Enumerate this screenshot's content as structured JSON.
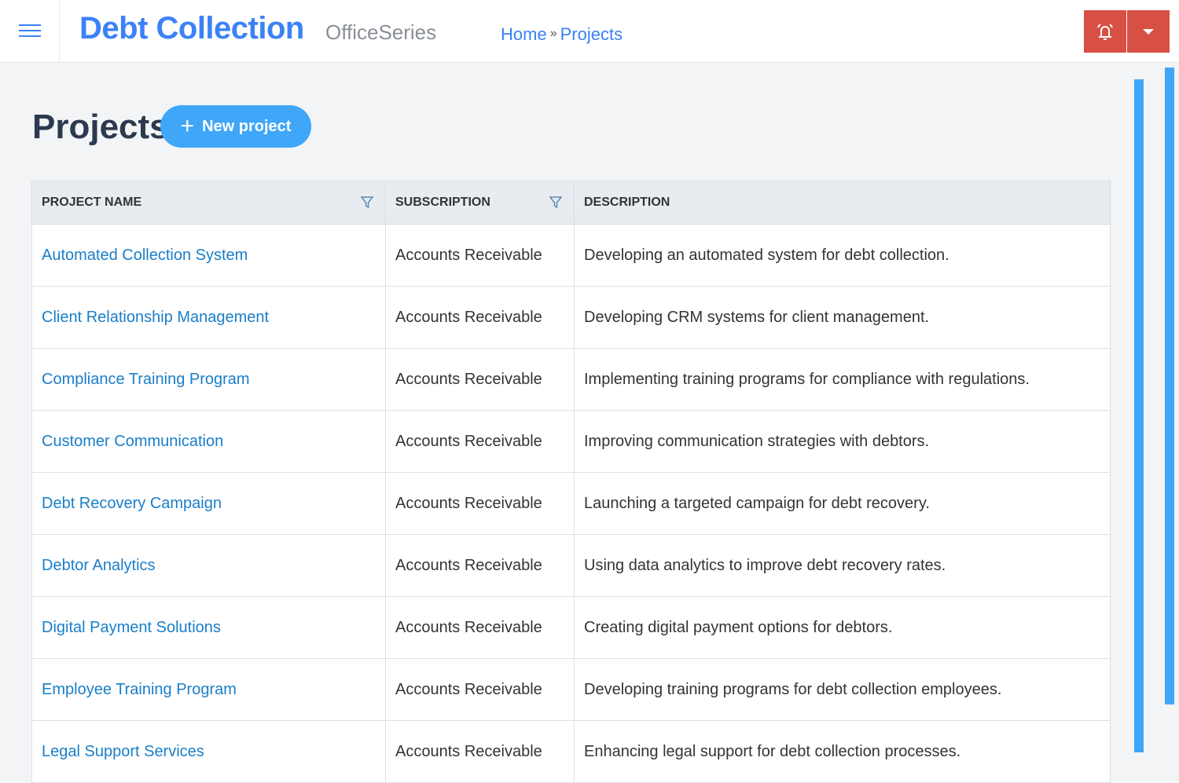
{
  "header": {
    "brand": "Debt Collection",
    "suite": "OfficeSeries",
    "breadcrumb": [
      {
        "label": "Home"
      },
      {
        "label": "Projects"
      }
    ],
    "breadcrumb_sep": "»",
    "accent": "#3b82f6",
    "alert_color": "#d84f43"
  },
  "page": {
    "title": "Projects",
    "new_button": "New project"
  },
  "table": {
    "columns": [
      "PROJECT NAME",
      "SUBSCRIPTION",
      "DESCRIPTION"
    ],
    "rows": [
      {
        "name": "Automated Collection System",
        "subscription": "Accounts Receivable",
        "description": "Developing an automated system for debt collection."
      },
      {
        "name": "Client Relationship Management",
        "subscription": "Accounts Receivable",
        "description": "Developing CRM systems for client management."
      },
      {
        "name": "Compliance Training Program",
        "subscription": "Accounts Receivable",
        "description": "Implementing training programs for compliance with regulations."
      },
      {
        "name": "Customer Communication",
        "subscription": "Accounts Receivable",
        "description": "Improving communication strategies with debtors."
      },
      {
        "name": "Debt Recovery Campaign",
        "subscription": "Accounts Receivable",
        "description": "Launching a targeted campaign for debt recovery."
      },
      {
        "name": "Debtor Analytics",
        "subscription": "Accounts Receivable",
        "description": "Using data analytics to improve debt recovery rates."
      },
      {
        "name": "Digital Payment Solutions",
        "subscription": "Accounts Receivable",
        "description": "Creating digital payment options for debtors."
      },
      {
        "name": "Employee Training Program",
        "subscription": "Accounts Receivable",
        "description": "Developing training programs for debt collection employees."
      },
      {
        "name": "Legal Support Services",
        "subscription": "Accounts Receivable",
        "description": "Enhancing legal support for debt collection processes."
      }
    ]
  }
}
